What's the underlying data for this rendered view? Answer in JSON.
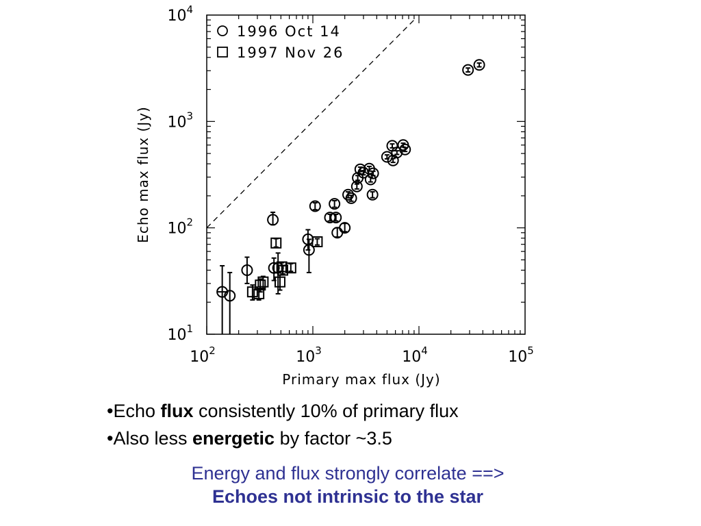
{
  "chart_data": {
    "type": "scatter",
    "xlabel": "Primary max flux (Jy)",
    "ylabel": "Echo max flux (Jy)",
    "xscale": "log",
    "yscale": "log",
    "xlim": [
      100,
      100000
    ],
    "ylim": [
      10,
      10000
    ],
    "x_ticks": [
      {
        "base": "10",
        "exp": "2",
        "value": 100
      },
      {
        "base": "10",
        "exp": "3",
        "value": 1000
      },
      {
        "base": "10",
        "exp": "4",
        "value": 10000
      },
      {
        "base": "10",
        "exp": "5",
        "value": 100000
      }
    ],
    "y_ticks": [
      {
        "base": "10",
        "exp": "1",
        "value": 10
      },
      {
        "base": "10",
        "exp": "2",
        "value": 100
      },
      {
        "base": "10",
        "exp": "3",
        "value": 1000
      },
      {
        "base": "10",
        "exp": "4",
        "value": 10000
      }
    ],
    "legend_position": "top-left",
    "reference_line": {
      "style": "dashed",
      "points": [
        [
          100,
          100
        ],
        [
          10000,
          10000
        ]
      ]
    },
    "series": [
      {
        "name": "1996 Oct 14",
        "marker": "circle",
        "points": [
          {
            "x": 140,
            "y": 25,
            "ylo": 9,
            "yhi": 44,
            "xlo": 125,
            "xhi": 160
          },
          {
            "x": 165,
            "y": 23,
            "ylo": 9,
            "yhi": 38
          },
          {
            "x": 240,
            "y": 40,
            "ylo": 30,
            "yhi": 53
          },
          {
            "x": 420,
            "y": 119,
            "ylo": 107,
            "yhi": 140
          },
          {
            "x": 430,
            "y": 42,
            "ylo": 32,
            "yhi": 52
          },
          {
            "x": 470,
            "y": 42,
            "ylo": 24,
            "yhi": 58
          },
          {
            "x": 900,
            "y": 78,
            "ylo": 62,
            "yhi": 96
          },
          {
            "x": 920,
            "y": 62,
            "ylo": 38,
            "yhi": 78
          },
          {
            "x": 1050,
            "y": 160,
            "ylo": 148,
            "yhi": 172
          },
          {
            "x": 1450,
            "y": 125,
            "ylo": 116,
            "yhi": 134
          },
          {
            "x": 1600,
            "y": 168,
            "ylo": 156,
            "yhi": 180
          },
          {
            "x": 1650,
            "y": 125,
            "ylo": 116,
            "yhi": 134
          },
          {
            "x": 1700,
            "y": 90,
            "ylo": 82,
            "yhi": 100
          },
          {
            "x": 2000,
            "y": 100,
            "ylo": 92,
            "yhi": 110
          },
          {
            "x": 2150,
            "y": 205,
            "ylo": 192,
            "yhi": 218
          },
          {
            "x": 2300,
            "y": 190,
            "ylo": 178,
            "yhi": 202
          },
          {
            "x": 2600,
            "y": 245,
            "ylo": 232,
            "yhi": 258
          },
          {
            "x": 2650,
            "y": 295,
            "ylo": 280,
            "yhi": 310
          },
          {
            "x": 2800,
            "y": 355,
            "ylo": 338,
            "yhi": 372
          },
          {
            "x": 3000,
            "y": 330,
            "ylo": 315,
            "yhi": 345
          },
          {
            "x": 3400,
            "y": 360,
            "ylo": 342,
            "yhi": 378
          },
          {
            "x": 3500,
            "y": 285,
            "ylo": 270,
            "yhi": 300
          },
          {
            "x": 3700,
            "y": 325,
            "ylo": 310,
            "yhi": 340
          },
          {
            "x": 3650,
            "y": 205,
            "ylo": 192,
            "yhi": 218
          },
          {
            "x": 5000,
            "y": 465,
            "ylo": 445,
            "yhi": 485
          },
          {
            "x": 5600,
            "y": 590,
            "ylo": 565,
            "yhi": 615
          },
          {
            "x": 5700,
            "y": 430,
            "ylo": 412,
            "yhi": 448
          },
          {
            "x": 6200,
            "y": 510,
            "ylo": 490,
            "yhi": 530
          },
          {
            "x": 7100,
            "y": 600,
            "ylo": 575,
            "yhi": 625
          },
          {
            "x": 7400,
            "y": 545,
            "ylo": 522,
            "yhi": 568
          },
          {
            "x": 29000,
            "y": 3050,
            "ylo": 2920,
            "yhi": 3180
          },
          {
            "x": 37000,
            "y": 3400,
            "ylo": 3260,
            "yhi": 3540
          }
        ]
      },
      {
        "name": "1997 Nov 26",
        "marker": "square",
        "points": [
          {
            "x": 270,
            "y": 25,
            "ylo": 21,
            "yhi": 29
          },
          {
            "x": 310,
            "y": 24,
            "ylo": 21,
            "yhi": 27
          },
          {
            "x": 320,
            "y": 29,
            "ylo": 25,
            "yhi": 33
          },
          {
            "x": 340,
            "y": 31,
            "ylo": 27,
            "yhi": 35
          },
          {
            "x": 450,
            "y": 72,
            "ylo": 66,
            "yhi": 79
          },
          {
            "x": 490,
            "y": 31,
            "ylo": 26,
            "yhi": 36
          },
          {
            "x": 510,
            "y": 43,
            "ylo": 39,
            "yhi": 47
          },
          {
            "x": 520,
            "y": 40,
            "ylo": 37,
            "yhi": 44
          },
          {
            "x": 620,
            "y": 42,
            "ylo": 39,
            "yhi": 46
          },
          {
            "x": 1100,
            "y": 74,
            "ylo": 69,
            "yhi": 79
          }
        ]
      }
    ]
  },
  "slide": {
    "bullet_1": {
      "bullet": "•",
      "pre": "Echo ",
      "bold": "flux",
      "post": " consistently 10% of primary flux"
    },
    "bullet_2": {
      "bullet": "•",
      "pre": "Also less ",
      "bold": "energetic",
      "post": " by factor ~3.5"
    },
    "conclusion_line_1": "Energy and flux strongly correlate ==>",
    "conclusion_line_2": "Echoes not intrinsic to the star",
    "accent_color": "#2e3192"
  }
}
